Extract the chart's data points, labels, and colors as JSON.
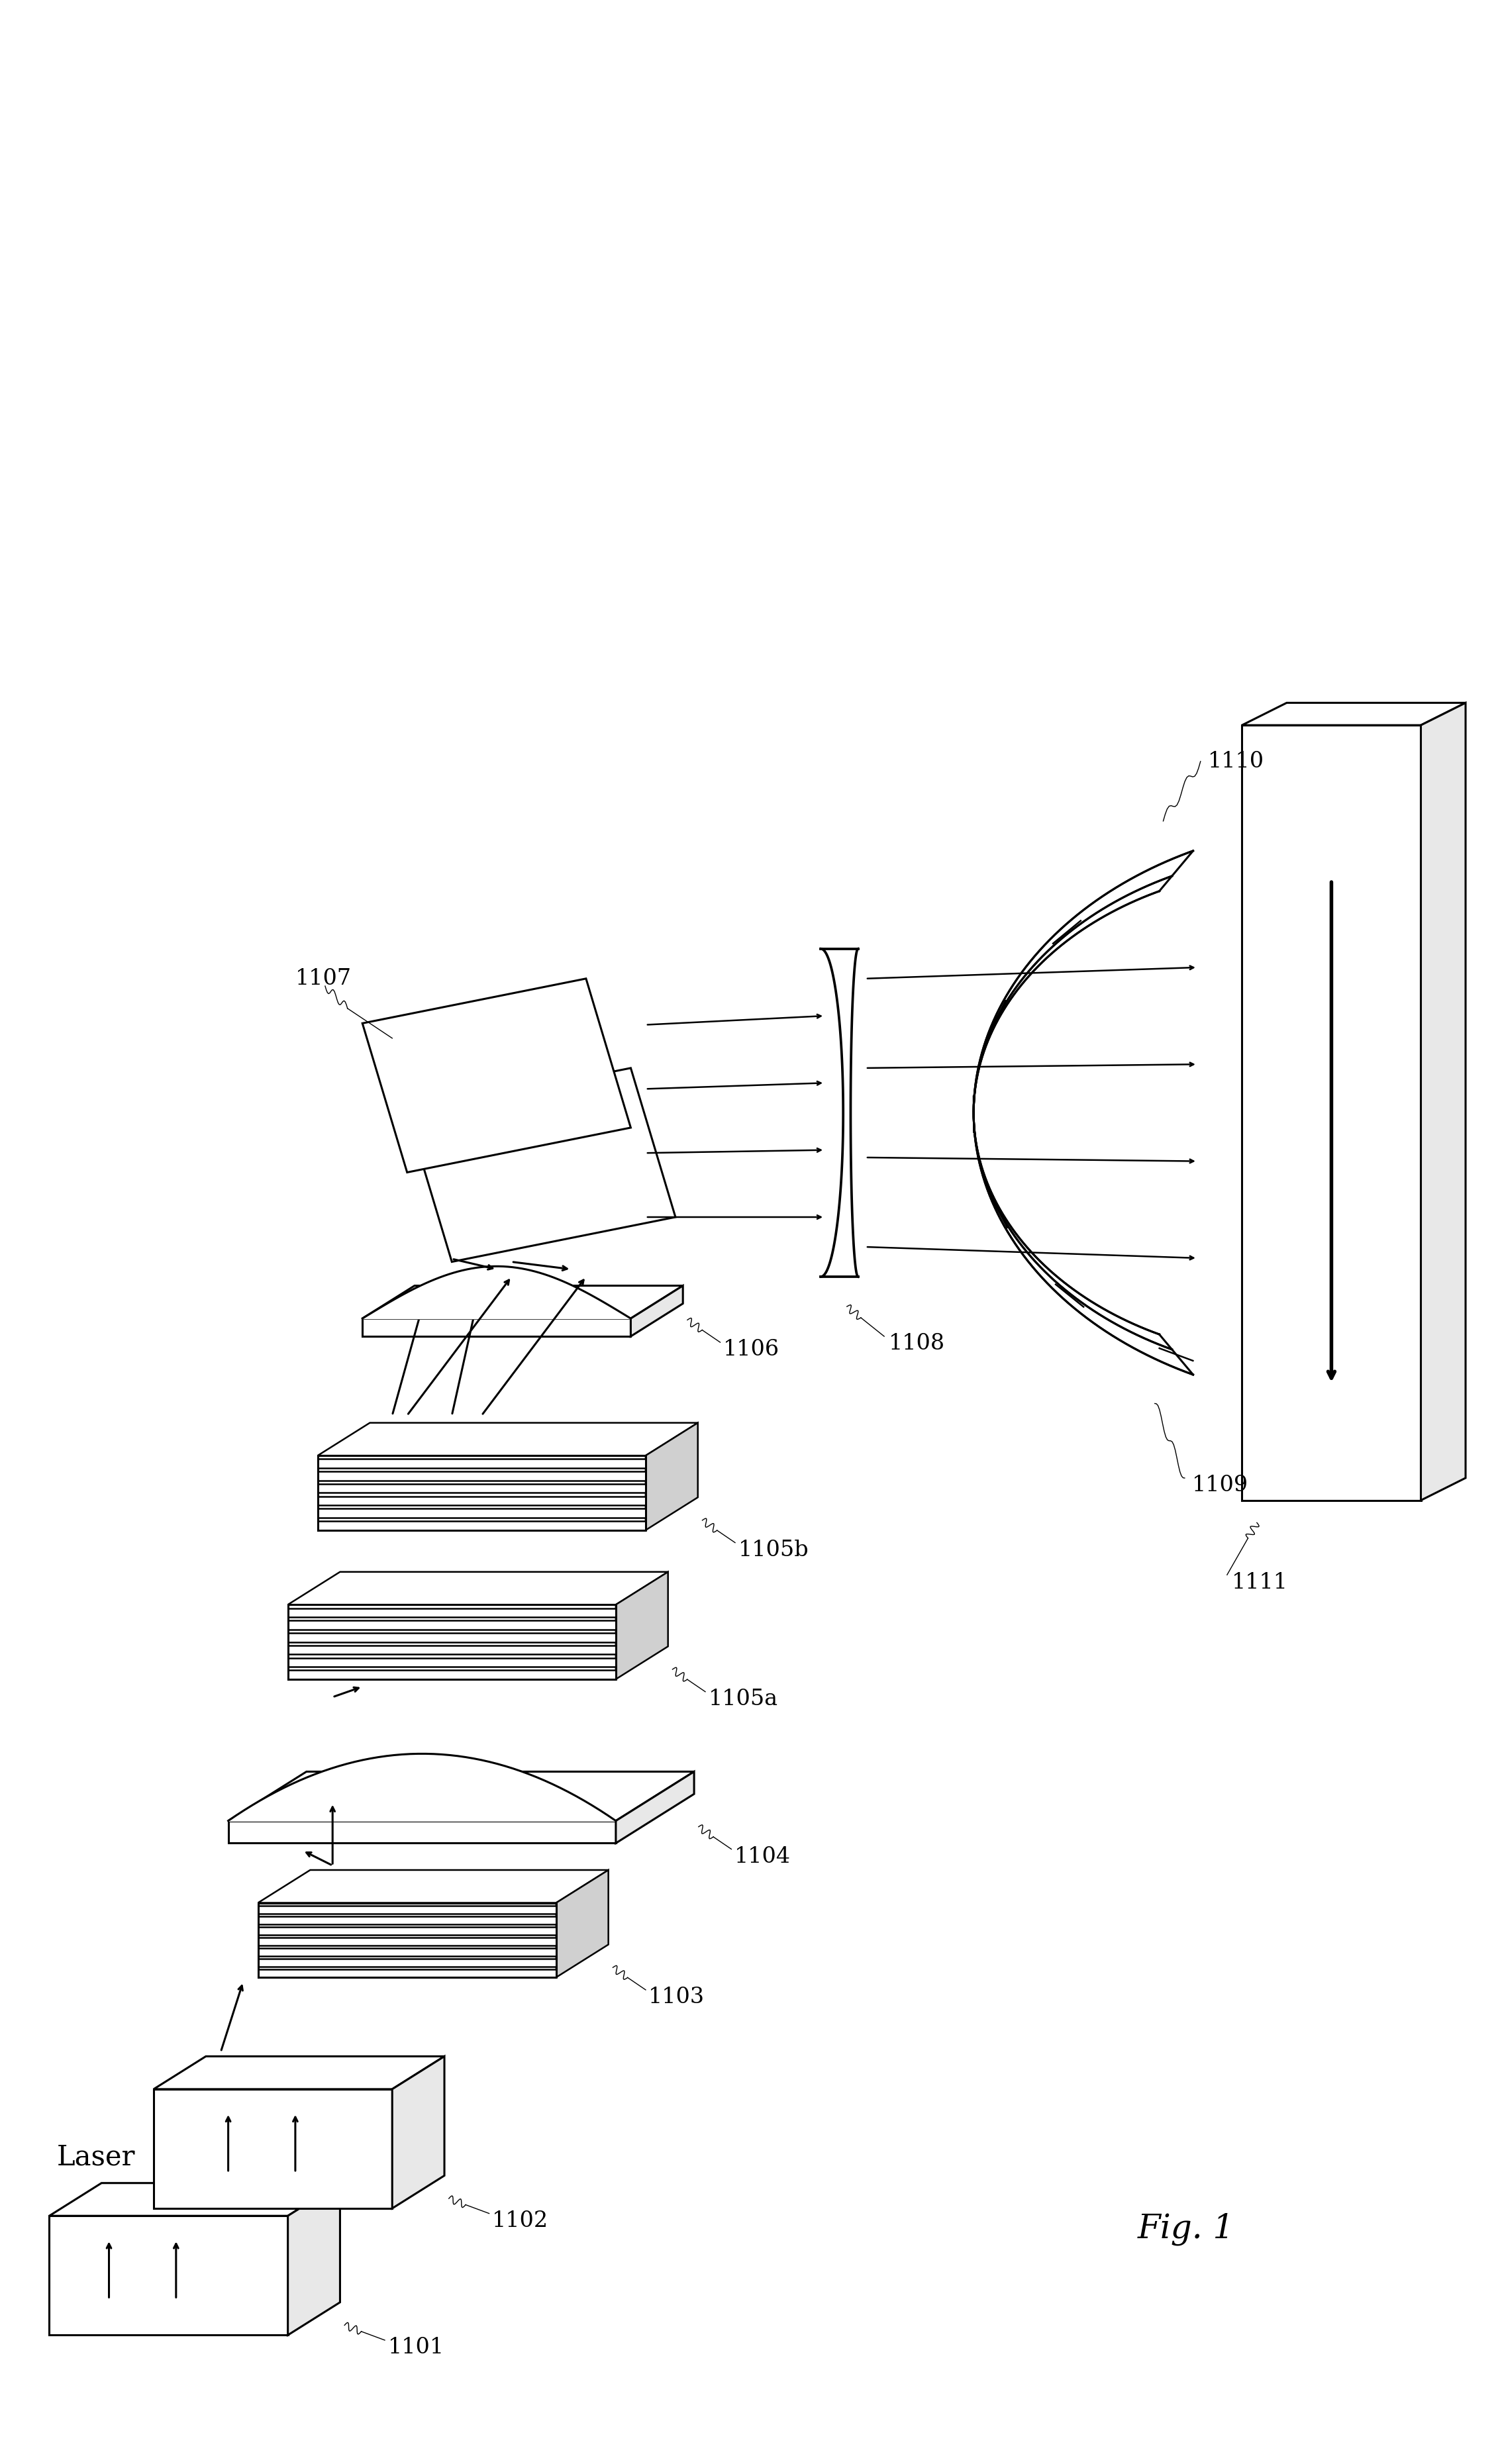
{
  "fig_label": "Fig. 1",
  "labels": {
    "1101": "1101",
    "1102": "1102",
    "1103": "1103",
    "1104": "1104",
    "1105a": "1105a",
    "1105b": "1105b",
    "1106": "1106",
    "1107": "1107",
    "1108": "1108",
    "1109": "1109",
    "1110": "1110",
    "1111": "1111",
    "laser": "Laser"
  },
  "line_color": "#000000",
  "bg_color": "#ffffff",
  "lw": 1.8,
  "lw_thick": 2.2
}
